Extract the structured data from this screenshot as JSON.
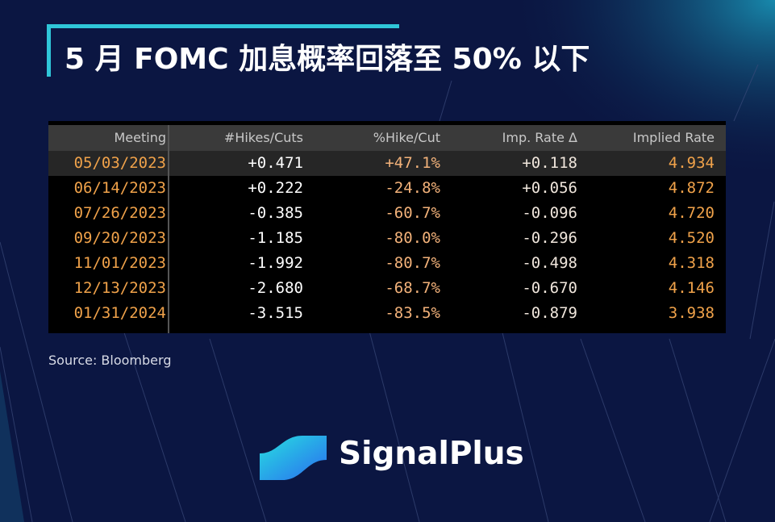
{
  "header": {
    "title": "5 月 FOMC 加息概率回落至 50% 以下"
  },
  "table": {
    "columns": [
      "Meeting",
      "#Hikes/Cuts",
      "%Hike/Cut",
      "Imp. Rate Δ",
      "Implied Rate"
    ],
    "rows": [
      [
        "05/03/2023",
        "+0.471",
        "+47.1%",
        "+0.118",
        "4.934"
      ],
      [
        "06/14/2023",
        "+0.222",
        "-24.8%",
        "+0.056",
        "4.872"
      ],
      [
        "07/26/2023",
        "-0.385",
        "-60.7%",
        "-0.096",
        "4.720"
      ],
      [
        "09/20/2023",
        "-1.185",
        "-80.0%",
        "-0.296",
        "4.520"
      ],
      [
        "11/01/2023",
        "-1.992",
        "-80.7%",
        "-0.498",
        "4.318"
      ],
      [
        "12/13/2023",
        "-2.680",
        "-68.7%",
        "-0.670",
        "4.146"
      ],
      [
        "01/31/2024",
        "-3.515",
        "-83.5%",
        "-0.879",
        "3.938"
      ]
    ]
  },
  "source": "Source: Bloomberg",
  "brand": "SignalPlus"
}
